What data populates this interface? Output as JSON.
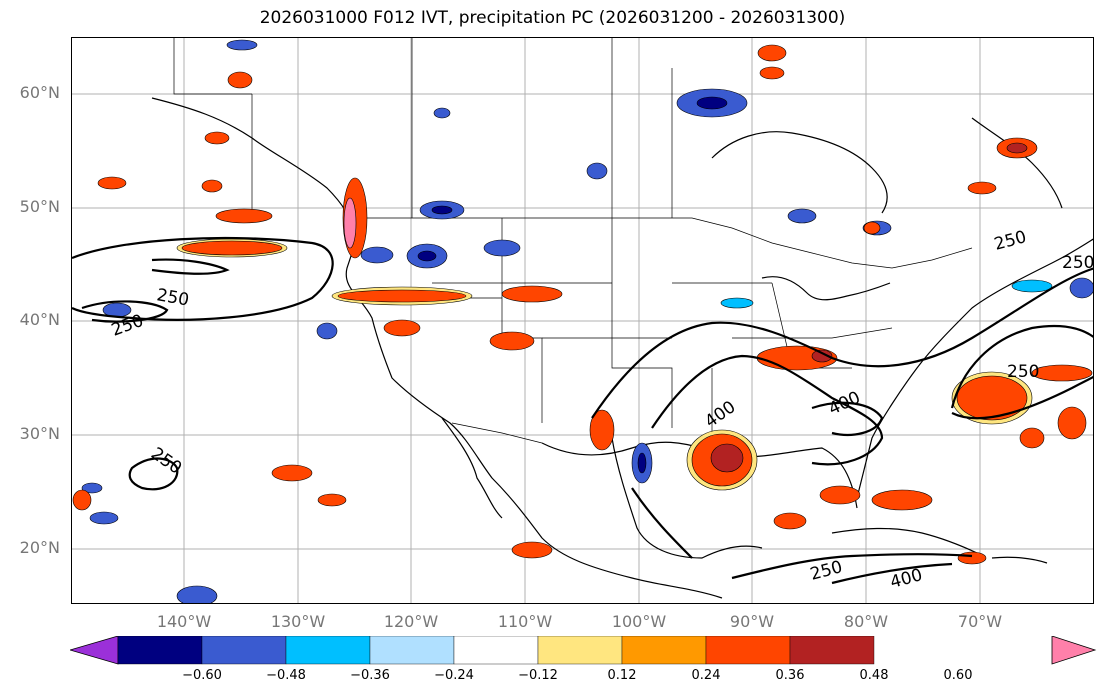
{
  "title": "2026031000 F012 IVT, precipitation PC (2026031200 - 2026031300)",
  "lat_ticks": [
    "60°N",
    "50°N",
    "40°N",
    "30°N",
    "20°N"
  ],
  "lon_ticks": [
    "140°W",
    "130°W",
    "120°W",
    "110°W",
    "100°W",
    "90°W",
    "80°W",
    "70°W"
  ],
  "colorbar": {
    "colors": [
      "#9b30d9",
      "#000080",
      "#3a5bd0",
      "#00bfff",
      "#b0e0ff",
      "#ffffff",
      "#ffe680",
      "#ff9900",
      "#ff4500",
      "#b22222",
      "#ff80aa"
    ],
    "tick_labels": [
      "−0.60",
      "−0.48",
      "−0.36",
      "−0.24",
      "−0.12",
      "0.12",
      "0.24",
      "0.36",
      "0.48",
      "0.60"
    ]
  },
  "ivt_contour_labels": [
    "250",
    "250",
    "250",
    "250",
    "250",
    "400",
    "400",
    "400",
    "250",
    "250"
  ]
}
